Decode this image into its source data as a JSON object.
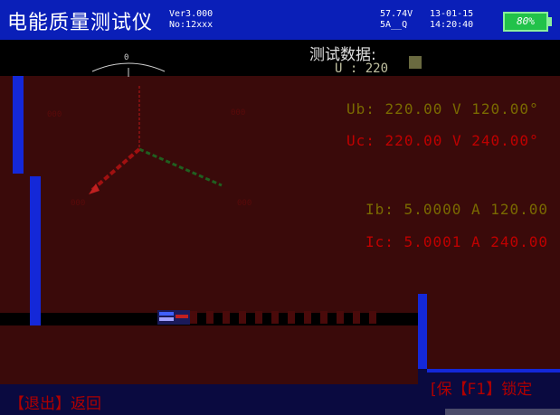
{
  "header": {
    "title": "电能质量测试仪",
    "version": "Ver3.000",
    "serial": "No:12xxx",
    "voltage": "57.74V",
    "current_range": "5A__Q",
    "date": "13-01-15",
    "time": "14:20:40",
    "battery": "80%"
  },
  "phasor": {
    "top_label": "0",
    "labels": {
      "left_upper": "000",
      "right_upper": "000",
      "left_lower": "000",
      "right_lower": "000"
    }
  },
  "data_panel": {
    "title": "测试数据:",
    "ua_partial": "U : 220",
    "rows": [
      {
        "name": "Ub:",
        "value": "220.00",
        "unit": "V",
        "angle": "120.00°"
      },
      {
        "name": "Uc:",
        "value": "220.00",
        "unit": "V",
        "angle": "240.00°"
      },
      {
        "name": "Ib:",
        "value": "5.0000",
        "unit": "A",
        "angle": "120.00"
      },
      {
        "name": "Ic:",
        "value": "5.0001",
        "unit": "A",
        "angle": "240.00"
      }
    ]
  },
  "footer": {
    "exit_label": "【退出】返回",
    "right_label": "[保【F1】锁定"
  },
  "colors": {
    "header_bg": "#0a1fb8",
    "accent_red": "#c00000",
    "battery_green": "#22c24a"
  }
}
